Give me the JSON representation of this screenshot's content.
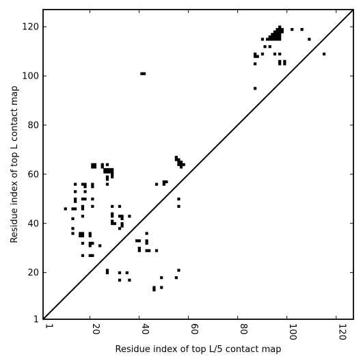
{
  "chart_data": {
    "type": "scatter",
    "title": "",
    "xlabel": "Residue index of top L/5 contact map",
    "ylabel": "Residue index of top L contact map",
    "xlim": [
      1,
      127
    ],
    "ylim": [
      1,
      127
    ],
    "xticks": [
      1,
      20,
      40,
      60,
      80,
      100,
      120
    ],
    "yticks": [
      1,
      20,
      40,
      60,
      80,
      100,
      120
    ],
    "xtick_labels": [
      "1",
      "20",
      "40",
      "60",
      "80",
      "100",
      "120"
    ],
    "ytick_labels": [
      "1",
      "20",
      "40",
      "60",
      "80",
      "100",
      "120"
    ],
    "x_tick_rotation": -90,
    "grid": false,
    "legend": "none",
    "marker": "square",
    "point_color": "#000000",
    "diagonal": {
      "from": [
        1,
        1
      ],
      "to": [
        127,
        127
      ]
    },
    "lower_points": [
      [
        41,
        101
      ],
      [
        42,
        101
      ],
      [
        55,
        67
      ],
      [
        55,
        66
      ],
      [
        56,
        66
      ],
      [
        56,
        65
      ],
      [
        57,
        65
      ],
      [
        57,
        64
      ],
      [
        56,
        64
      ],
      [
        57,
        63
      ],
      [
        58,
        64
      ],
      [
        50,
        57
      ],
      [
        51,
        57
      ],
      [
        47,
        56
      ],
      [
        50,
        56
      ],
      [
        56,
        50
      ],
      [
        56,
        47
      ],
      [
        56,
        21
      ],
      [
        55,
        18
      ],
      [
        49,
        18
      ],
      [
        49,
        14
      ],
      [
        46,
        14
      ],
      [
        46,
        13
      ],
      [
        21,
        64
      ],
      [
        22,
        64
      ],
      [
        21,
        63
      ],
      [
        22,
        63
      ],
      [
        25,
        64
      ],
      [
        25,
        63
      ],
      [
        27,
        64
      ],
      [
        26,
        62
      ],
      [
        27,
        62
      ],
      [
        28,
        62
      ],
      [
        29,
        62
      ],
      [
        26,
        61
      ],
      [
        27,
        61
      ],
      [
        28,
        61
      ],
      [
        29,
        61
      ],
      [
        29,
        60
      ],
      [
        29,
        59
      ],
      [
        27,
        59
      ],
      [
        27,
        58
      ],
      [
        27,
        56
      ],
      [
        14,
        56
      ],
      [
        17,
        56
      ],
      [
        18,
        56
      ],
      [
        21,
        56
      ],
      [
        18,
        55
      ],
      [
        21,
        55
      ],
      [
        18,
        53
      ],
      [
        14,
        53
      ],
      [
        14,
        50
      ],
      [
        17,
        50
      ],
      [
        18,
        50
      ],
      [
        21,
        50
      ],
      [
        14,
        49
      ],
      [
        17,
        47
      ],
      [
        21,
        47
      ],
      [
        17,
        46
      ],
      [
        13,
        46
      ],
      [
        14,
        46
      ],
      [
        10,
        46
      ],
      [
        29,
        47
      ],
      [
        32,
        47
      ],
      [
        29,
        44
      ],
      [
        29,
        43
      ],
      [
        32,
        43
      ],
      [
        33,
        43
      ],
      [
        36,
        43
      ],
      [
        33,
        42
      ],
      [
        13,
        42
      ],
      [
        17,
        43
      ],
      [
        29,
        41
      ],
      [
        29,
        40
      ],
      [
        30,
        40
      ],
      [
        33,
        40
      ],
      [
        33,
        39
      ],
      [
        32,
        38
      ],
      [
        13,
        38
      ],
      [
        13,
        36
      ],
      [
        16,
        36
      ],
      [
        17,
        36
      ],
      [
        16,
        35
      ],
      [
        17,
        35
      ],
      [
        20,
        36
      ],
      [
        20,
        35
      ],
      [
        43,
        36
      ],
      [
        43,
        33
      ],
      [
        43,
        32
      ],
      [
        39,
        33
      ],
      [
        40,
        33
      ],
      [
        17,
        32
      ],
      [
        20,
        32
      ],
      [
        21,
        32
      ],
      [
        20,
        31
      ],
      [
        24,
        31
      ],
      [
        40,
        30
      ],
      [
        40,
        29
      ],
      [
        43,
        29
      ],
      [
        44,
        29
      ],
      [
        47,
        29
      ],
      [
        17,
        27
      ],
      [
        20,
        27
      ],
      [
        21,
        27
      ],
      [
        27,
        21
      ],
      [
        27,
        20
      ],
      [
        32,
        20
      ],
      [
        35,
        20
      ],
      [
        32,
        17
      ],
      [
        36,
        17
      ]
    ],
    "upper_points": [
      [
        97,
        120
      ],
      [
        96,
        119
      ],
      [
        97,
        119
      ],
      [
        98,
        119
      ],
      [
        102,
        119
      ],
      [
        106,
        119
      ],
      [
        95,
        118
      ],
      [
        96,
        118
      ],
      [
        97,
        118
      ],
      [
        98,
        118
      ],
      [
        94,
        117
      ],
      [
        95,
        117
      ],
      [
        96,
        117
      ],
      [
        97,
        117
      ],
      [
        93,
        116
      ],
      [
        94,
        116
      ],
      [
        95,
        116
      ],
      [
        96,
        116
      ],
      [
        97,
        116
      ],
      [
        92,
        115
      ],
      [
        93,
        115
      ],
      [
        94,
        115
      ],
      [
        95,
        115
      ],
      [
        96,
        115
      ],
      [
        97,
        115
      ],
      [
        90,
        115
      ],
      [
        109,
        115
      ],
      [
        91,
        112
      ],
      [
        93,
        112
      ],
      [
        90,
        109
      ],
      [
        95,
        109
      ],
      [
        97,
        109
      ],
      [
        115,
        109
      ],
      [
        87,
        109
      ],
      [
        87,
        108
      ],
      [
        88,
        108
      ],
      [
        87,
        105
      ],
      [
        97,
        106
      ],
      [
        97,
        105
      ],
      [
        99,
        106
      ],
      [
        99,
        105
      ],
      [
        87,
        95
      ]
    ]
  }
}
